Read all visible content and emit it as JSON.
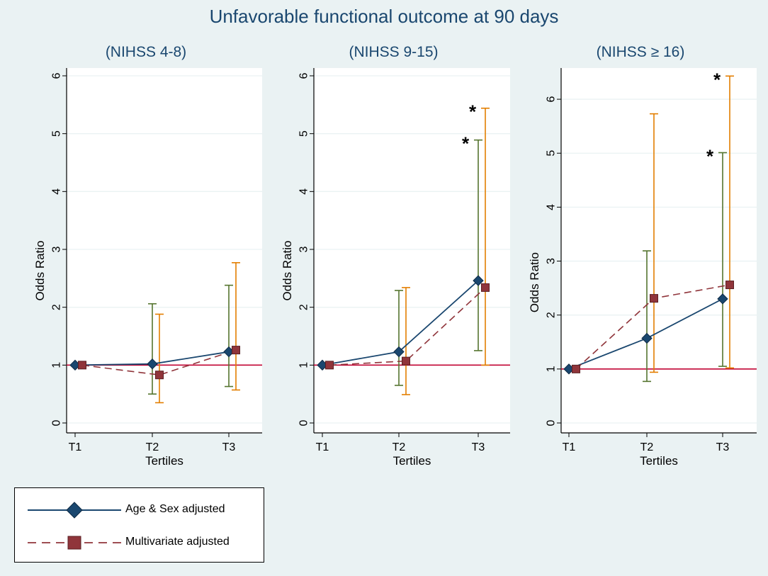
{
  "title": "Unfavorable functional outcome at 90 days",
  "colors": {
    "figure_bg": "#eaf2f3",
    "plot_bg": "#ffffff",
    "age_sex": "#1a476f",
    "multivariate": "#90353b",
    "ci_age_sex": "#55752f",
    "ci_multivariate": "#e37e00",
    "reference": "#c10534",
    "grid": "#eaf2f3"
  },
  "chart_data": [
    {
      "type": "line",
      "title": "(NIHSS 4-8)",
      "xlabel": "Tertiles",
      "ylabel": "Odds Ratio",
      "categories": [
        "T1",
        "T2",
        "T3"
      ],
      "ylim": [
        0,
        6
      ],
      "yticks": [
        0,
        1,
        2,
        3,
        4,
        5,
        6
      ],
      "reference_line": 1,
      "series": [
        {
          "name": "Age & Sex adjusted",
          "values": [
            1.0,
            1.02,
            1.23
          ],
          "ci_low": [
            null,
            0.5,
            0.63
          ],
          "ci_high": [
            null,
            2.06,
            2.38
          ]
        },
        {
          "name": "Multivariate adjusted",
          "values": [
            1.0,
            0.83,
            1.26
          ],
          "ci_low": [
            null,
            0.35,
            0.57
          ],
          "ci_high": [
            null,
            1.88,
            2.77
          ]
        }
      ],
      "annotations": []
    },
    {
      "type": "line",
      "title": "(NIHSS 9-15)",
      "xlabel": "Tertiles",
      "ylabel": "Odds Ratio",
      "categories": [
        "T1",
        "T2",
        "T3"
      ],
      "ylim": [
        0,
        6
      ],
      "yticks": [
        0,
        1,
        2,
        3,
        4,
        5,
        6
      ],
      "reference_line": 1,
      "series": [
        {
          "name": "Age & Sex adjusted",
          "values": [
            1.0,
            1.23,
            2.46
          ],
          "ci_low": [
            null,
            0.65,
            1.25
          ],
          "ci_high": [
            null,
            2.29,
            4.89
          ]
        },
        {
          "name": "Multivariate adjusted",
          "values": [
            1.0,
            1.07,
            2.34
          ],
          "ci_low": [
            null,
            0.49,
            1.0
          ],
          "ci_high": [
            null,
            2.34,
            5.44
          ]
        }
      ],
      "annotations": [
        {
          "text": "*",
          "series": "Age & Sex adjusted",
          "category": "T3"
        },
        {
          "text": "*",
          "series": "Multivariate adjusted",
          "category": "T3"
        }
      ]
    },
    {
      "type": "line",
      "title": "(NIHSS ≥ 16)",
      "xlabel": "Tertiles",
      "ylabel": "Odds Ratio",
      "categories": [
        "T1",
        "T2",
        "T3"
      ],
      "ylim": [
        0,
        6.5
      ],
      "yticks": [
        0,
        1,
        2,
        3,
        4,
        5,
        6
      ],
      "reference_line": 1,
      "series": [
        {
          "name": "Age & Sex adjusted",
          "values": [
            1.0,
            1.57,
            2.3
          ],
          "ci_low": [
            null,
            0.77,
            1.05
          ],
          "ci_high": [
            null,
            3.19,
            5.01
          ]
        },
        {
          "name": "Multivariate adjusted",
          "values": [
            1.0,
            2.31,
            2.56
          ],
          "ci_low": [
            null,
            0.94,
            1.02
          ],
          "ci_high": [
            null,
            5.73,
            6.43
          ]
        }
      ],
      "annotations": [
        {
          "text": "*",
          "series": "Age & Sex adjusted",
          "category": "T3"
        },
        {
          "text": "*",
          "series": "Multivariate adjusted",
          "category": "T3"
        }
      ]
    }
  ],
  "legend": {
    "items": [
      {
        "label": "Age & Sex adjusted",
        "marker": "diamond-icon",
        "line": "solid"
      },
      {
        "label": "Multivariate adjusted",
        "marker": "square-icon",
        "line": "dashed"
      }
    ]
  }
}
